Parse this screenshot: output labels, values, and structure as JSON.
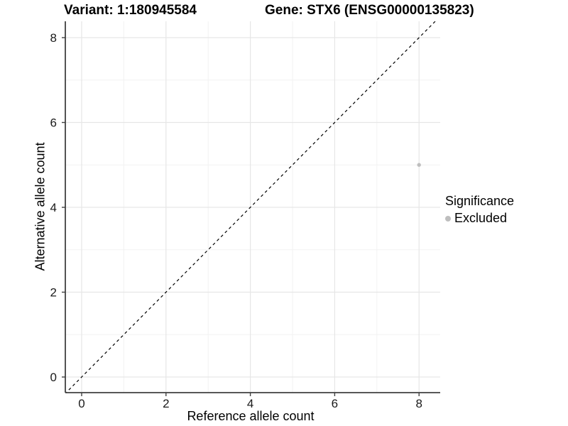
{
  "header": {
    "variant_title": "Variant: 1:180945584",
    "gene_title": "Gene: STX6 (ENSG00000135823)"
  },
  "chart_data": {
    "type": "scatter",
    "title": "Variant: 1:180945584  /  Gene: STX6 (ENSG00000135823)",
    "xlabel": "Reference allele count",
    "ylabel": "Alternative allele count",
    "xlim": [
      -0.39,
      8.5
    ],
    "ylim": [
      -0.37,
      8.4
    ],
    "x_major_ticks": [
      0,
      2,
      4,
      6,
      8
    ],
    "y_major_ticks": [
      0,
      2,
      4,
      6,
      8
    ],
    "x_minor_gridlines": [
      1,
      3,
      5,
      7
    ],
    "y_minor_gridlines": [
      1,
      3,
      5,
      7
    ],
    "grid": "on",
    "identity_line": {
      "slope": 1,
      "intercept": 0,
      "style": "dashed",
      "color": "#000000"
    },
    "series": [
      {
        "name": "Excluded",
        "color": "#bebebe",
        "points": [
          {
            "x": 8,
            "y": 5
          }
        ]
      }
    ],
    "legend": {
      "title": "Significance",
      "position": "right",
      "items": [
        {
          "label": "Excluded",
          "color": "#bebebe"
        }
      ]
    }
  },
  "colors": {
    "background": "#ffffff",
    "grid_major": "#e6e6e6",
    "grid_minor": "#f2f2f2",
    "axis_line": "#404040",
    "tick_label": "#1a1a1a",
    "point": "#bebebe",
    "identity_line": "#000000"
  }
}
